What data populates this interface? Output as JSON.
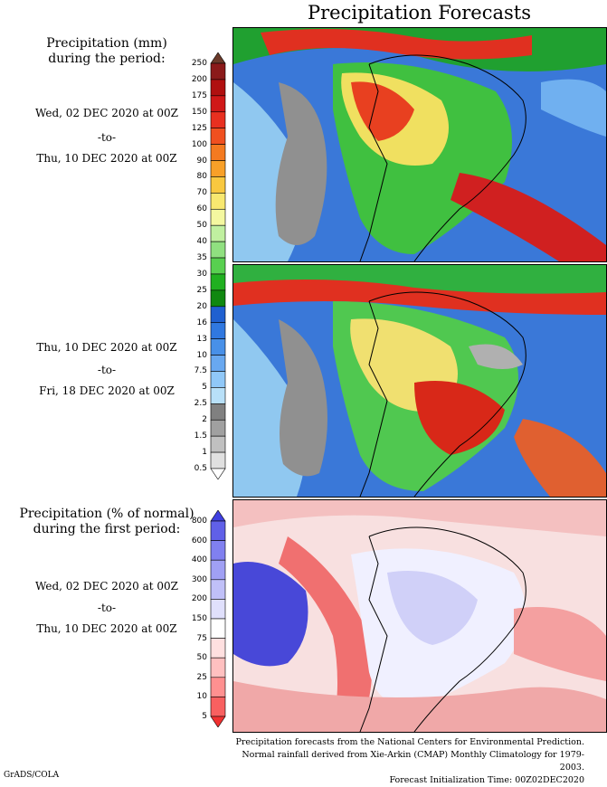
{
  "title": "Precipitation Forecasts",
  "left_labels": {
    "amount_heading": [
      "Precipitation (mm)",
      "during the period:"
    ],
    "percent_heading": [
      "Precipitation (% of normal)",
      "during the first period:"
    ]
  },
  "periods": [
    {
      "start": "Wed, 02 DEC 2020 at 00Z",
      "sep": "-to-",
      "end": "Thu, 10 DEC 2020 at 00Z"
    },
    {
      "start": "Thu, 10 DEC 2020 at 00Z",
      "sep": "-to-",
      "end": "Fri, 18 DEC 2020 at 00Z"
    },
    {
      "start": "Wed, 02 DEC 2020 at 00Z",
      "sep": "-to-",
      "end": "Thu, 10 DEC 2020 at 00Z"
    }
  ],
  "colorbar_mm": {
    "labels": [
      "250",
      "200",
      "175",
      "150",
      "125",
      "100",
      "90",
      "80",
      "70",
      "60",
      "50",
      "40",
      "35",
      "30",
      "25",
      "20",
      "16",
      "13",
      "10",
      "7.5",
      "5",
      "2.5",
      "2",
      "1.5",
      "1",
      "0.5"
    ],
    "colors": [
      "#6b3a2a",
      "#8b1a1a",
      "#b01010",
      "#d01818",
      "#e83020",
      "#f05020",
      "#f47a20",
      "#f8a028",
      "#f8c840",
      "#f8e870",
      "#f4f8a0",
      "#c0f0a0",
      "#90e080",
      "#58d050",
      "#20b020",
      "#108810",
      "#2060d0",
      "#3078e0",
      "#4890e8",
      "#68a8f0",
      "#90c8f8",
      "#b8e0f8",
      "#808080",
      "#a0a0a0",
      "#c0c0c0",
      "#e0e0e0",
      "#ffffff"
    ]
  },
  "colorbar_pct": {
    "labels": [
      "800",
      "600",
      "400",
      "300",
      "200",
      "150",
      "75",
      "50",
      "25",
      "10",
      "5"
    ],
    "colors": [
      "#4040e0",
      "#6060e8",
      "#8080f0",
      "#a0a0f4",
      "#c0c0f8",
      "#e0e0fc",
      "#ffffff",
      "#ffe0e0",
      "#ffc0c0",
      "#ff9090",
      "#f86060",
      "#f03030"
    ]
  },
  "footer": [
    "Precipitation forecasts from the National Centers for Environmental Prediction.",
    "Normal rainfall derived from Xie-Arkin (CMAP) Monthly Climatology for 1979-2003.",
    "Forecast Initialization Time: 00Z02DEC2020"
  ],
  "credit": "GrADS/COLA"
}
